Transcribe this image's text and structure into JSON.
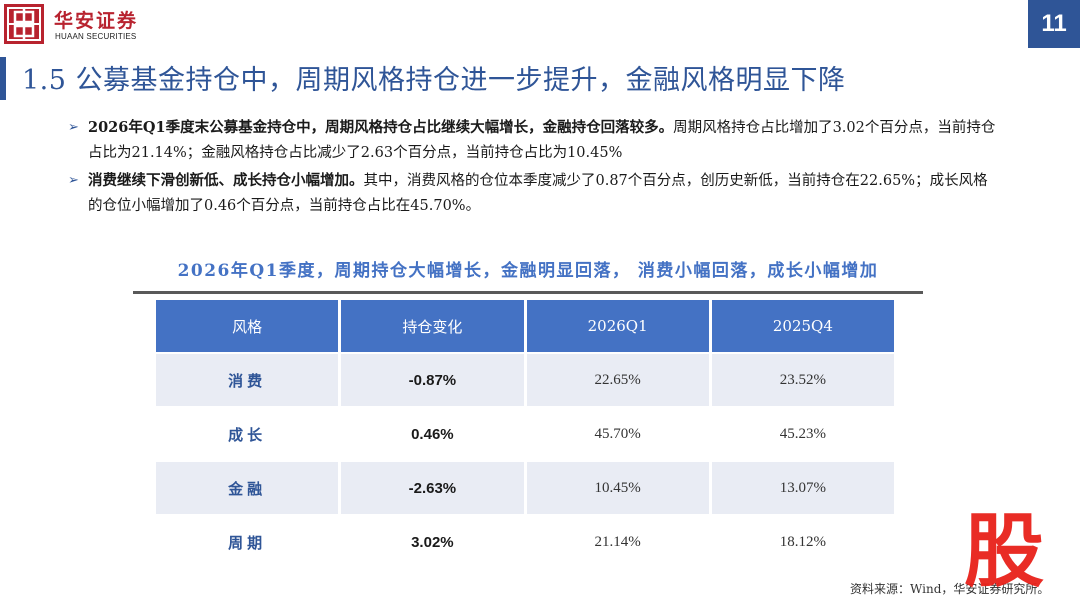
{
  "header": {
    "logo_cn": "华安证券",
    "logo_en": "HUAAN SECURITIES",
    "page_number": "11"
  },
  "title": "1.5 公募基金持仓中，周期风格持仓进一步提升，金融风格明显下降",
  "bullets": [
    {
      "bold": "2026年Q1季度末公募基金持仓中，周期风格持仓占比继续大幅增长，金融持仓回落较多。",
      "text": "周期风格持仓占比增加了3.02个百分点，当前持仓占比为21.14%；金融风格持仓占比减少了2.63个百分点，当前持仓占比为10.45%"
    },
    {
      "bold": "消费继续下滑创新低、成长持仓小幅增加。",
      "text": "其中，消费风格的仓位本季度减少了0.87个百分点，创历史新低，当前持仓在22.65%；成长风格的仓位小幅增加了0.46个百分点，当前持仓占比在45.70%。"
    }
  ],
  "table": {
    "title": "2026年Q1季度，周期持仓大幅增长，金融明显回落， 消费小幅回落，成长小幅增加",
    "headers": [
      "风格",
      "持仓变化",
      "2026Q1",
      "2025Q4"
    ],
    "rows": [
      [
        "消费",
        "-0.87%",
        "22.65%",
        "23.52%"
      ],
      [
        "成长",
        "0.46%",
        "45.70%",
        "45.23%"
      ],
      [
        "金融",
        "-2.63%",
        "10.45%",
        "13.07%"
      ],
      [
        "周期",
        "3.02%",
        "21.14%",
        "18.12%"
      ]
    ]
  },
  "source": "资料来源：Wind，华安证券研究所。",
  "watermark": "股",
  "colors": {
    "brand_red": "#b8232f",
    "primary_blue": "#2f5597",
    "header_blue": "#4472c4",
    "row_shade": "#e9ecf4"
  }
}
